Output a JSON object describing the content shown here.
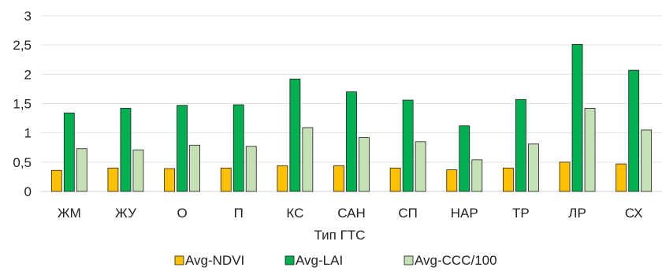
{
  "chart_data": {
    "type": "bar",
    "xlabel": "Тип ГТС",
    "ylabel": "",
    "ylim": [
      0,
      3
    ],
    "yticks": [
      "0",
      "0,5",
      "1",
      "1,5",
      "2",
      "2,5",
      "3"
    ],
    "grid": true,
    "legend_position": "bottom",
    "categories": [
      "ЖМ",
      "ЖУ",
      "О",
      "П",
      "КС",
      "САН",
      "СП",
      "НАР",
      "ТР",
      "ЛР",
      "СХ"
    ],
    "series": [
      {
        "name": "Avg-NDVI",
        "color": "#FFC000",
        "values": [
          0.36,
          0.4,
          0.39,
          0.4,
          0.44,
          0.44,
          0.4,
          0.37,
          0.4,
          0.5,
          0.47
        ]
      },
      {
        "name": "Avg-LAI",
        "color": "#00B050",
        "values": [
          1.34,
          1.42,
          1.47,
          1.48,
          1.92,
          1.7,
          1.56,
          1.12,
          1.57,
          2.51,
          2.07
        ]
      },
      {
        "name": "Avg-CCC/100",
        "color": "#C5E0B4",
        "values": [
          0.73,
          0.71,
          0.79,
          0.77,
          1.09,
          0.92,
          0.85,
          0.54,
          0.81,
          1.42,
          1.05
        ]
      }
    ]
  }
}
